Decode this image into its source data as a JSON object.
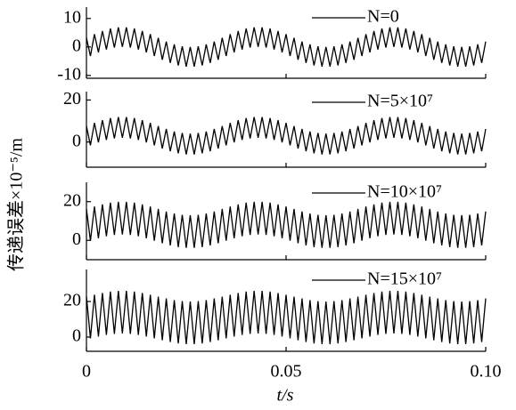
{
  "chart_data": [
    {
      "type": "line",
      "ylabel": "传递误差×10⁻⁵/m",
      "series": [
        {
          "name": "N=0",
          "color": "#000000",
          "values": [
            3.2,
            -3.2,
            4.5,
            -1.9,
            5.6,
            -0.9,
            6.5,
            -0.2,
            6.9,
            0,
            6.9,
            -0.2,
            6.5,
            -0.9,
            5.6,
            -1.9,
            4.5,
            -3.2,
            3.2,
            -4.5,
            1.9,
            -5.6,
            0.9,
            -6.5,
            0.2,
            -6.9,
            0,
            -6.9,
            0.2,
            -6.5,
            0.9,
            -5.6,
            1.9,
            -4.5,
            3.2,
            -3.2,
            4.5,
            -1.9,
            5.6,
            -0.9,
            6.5,
            -0.2,
            6.9,
            0,
            6.9,
            -0.2,
            6.5,
            -0.9,
            5.6,
            -1.9,
            4.5,
            -3.2,
            3.2,
            -4.5,
            1.9,
            -5.6,
            0.9,
            -6.5,
            0.2,
            -6.9,
            0,
            -6.9,
            0.2,
            -6.5,
            0.9,
            -5.6,
            1.9,
            -4.5,
            3.2,
            -3.2,
            4.5,
            -1.9,
            5.6,
            -0.9,
            6.5,
            -0.2,
            6.9,
            0,
            6.9,
            -0.2,
            6.5,
            -0.9,
            5.6,
            -1.9,
            4.5,
            -3.2,
            3.2,
            -4.5,
            1.9,
            -5.6,
            0.9,
            -6.5,
            0.2,
            -6.9,
            0,
            -6.9,
            0.2,
            -6.5,
            0.9,
            -5.6,
            1.9
          ]
        }
      ],
      "x": [
        0,
        0.001,
        0.002,
        0.003,
        0.004,
        0.005,
        0.006,
        0.007,
        0.008,
        0.009,
        0.01,
        0.011,
        0.012,
        0.013,
        0.014,
        0.015,
        0.016,
        0.017,
        0.018,
        0.019,
        0.02,
        0.021,
        0.022,
        0.023,
        0.024,
        0.025,
        0.026,
        0.027,
        0.028,
        0.029,
        0.03,
        0.031,
        0.032,
        0.033,
        0.034,
        0.035,
        0.036,
        0.037,
        0.038,
        0.039,
        0.04,
        0.041,
        0.042,
        0.043,
        0.044,
        0.045,
        0.046,
        0.047,
        0.048,
        0.049,
        0.05,
        0.051,
        0.052,
        0.053,
        0.054,
        0.055,
        0.056,
        0.057,
        0.058,
        0.059,
        0.06,
        0.061,
        0.062,
        0.063,
        0.064,
        0.065,
        0.066,
        0.067,
        0.068,
        0.069,
        0.07,
        0.071,
        0.072,
        0.073,
        0.074,
        0.075,
        0.076,
        0.077,
        0.078,
        0.079,
        0.08,
        0.081,
        0.082,
        0.083,
        0.084,
        0.085,
        0.086,
        0.087,
        0.088,
        0.089,
        0.09,
        0.091,
        0.092,
        0.093,
        0.094,
        0.095,
        0.096,
        0.097,
        0.098,
        0.099,
        0.1
      ],
      "xlim": [
        0,
        0.1
      ],
      "ylim": [
        -11,
        14
      ],
      "yticks": [
        -10,
        0,
        10
      ]
    },
    {
      "type": "line",
      "series": [
        {
          "name": "N=5×10⁷",
          "color": "#000000",
          "values": [
            7.6,
            -1.6,
            9.1,
            -0.2,
            10.4,
            1.0,
            11.4,
            1.7,
            11.9,
            2.0,
            11.9,
            1.7,
            11.4,
            1.0,
            10.4,
            -0.2,
            9.1,
            -1.6,
            7.6,
            -3.1,
            6.2,
            -4.4,
            5.0,
            -5.4,
            4.3,
            -5.9,
            4.0,
            -5.9,
            4.3,
            -5.4,
            5.0,
            -4.4,
            6.2,
            -3.1,
            7.6,
            -1.6,
            9.1,
            -0.2,
            10.4,
            1.0,
            11.4,
            1.7,
            11.9,
            2.0,
            11.9,
            1.7,
            11.4,
            1.0,
            10.4,
            -0.2,
            9.1,
            -1.6,
            7.6,
            -3.1,
            6.2,
            -4.4,
            5.0,
            -5.4,
            4.3,
            -5.9,
            4.0,
            -5.9,
            4.3,
            -5.4,
            5.0,
            -4.4,
            6.2,
            -3.1,
            7.6,
            -1.6,
            9.1,
            -0.2,
            10.4,
            1.0,
            11.4,
            1.7,
            11.9,
            2.0,
            11.9,
            1.7,
            11.4,
            1.0,
            10.4,
            -0.2,
            9.1,
            -1.6,
            7.6,
            -3.1,
            6.2,
            -4.4,
            5.0,
            -5.4,
            4.3,
            -5.9,
            4.0,
            -5.9,
            4.3,
            -5.4,
            5.0,
            -4.4,
            6.2
          ]
        }
      ],
      "x": [
        0,
        0.001,
        0.002,
        0.003,
        0.004,
        0.005,
        0.006,
        0.007,
        0.008,
        0.009,
        0.01,
        0.011,
        0.012,
        0.013,
        0.014,
        0.015,
        0.016,
        0.017,
        0.018,
        0.019,
        0.02,
        0.021,
        0.022,
        0.023,
        0.024,
        0.025,
        0.026,
        0.027,
        0.028,
        0.029,
        0.03,
        0.031,
        0.032,
        0.033,
        0.034,
        0.035,
        0.036,
        0.037,
        0.038,
        0.039,
        0.04,
        0.041,
        0.042,
        0.043,
        0.044,
        0.045,
        0.046,
        0.047,
        0.048,
        0.049,
        0.05,
        0.051,
        0.052,
        0.053,
        0.054,
        0.055,
        0.056,
        0.057,
        0.058,
        0.059,
        0.06,
        0.061,
        0.062,
        0.063,
        0.064,
        0.065,
        0.066,
        0.067,
        0.068,
        0.069,
        0.07,
        0.071,
        0.072,
        0.073,
        0.074,
        0.075,
        0.076,
        0.077,
        0.078,
        0.079,
        0.08,
        0.081,
        0.082,
        0.083,
        0.084,
        0.085,
        0.086,
        0.087,
        0.088,
        0.089,
        0.09,
        0.091,
        0.092,
        0.093,
        0.094,
        0.095,
        0.096,
        0.097,
        0.098,
        0.099,
        0.1
      ],
      "xlim": [
        0,
        0.1
      ],
      "ylim": [
        -12,
        24
      ],
      "yticks": [
        0,
        20
      ]
    },
    {
      "type": "line",
      "series": [
        {
          "name": "N=10×10⁷",
          "color": "#000000",
          "values": [
            16.2,
            -0.2,
            17.5,
            1.1,
            18.6,
            2.1,
            19.5,
            2.8,
            19.9,
            3.0,
            19.9,
            2.8,
            19.5,
            2.1,
            18.6,
            1.1,
            17.5,
            -0.2,
            16.2,
            -1.5,
            14.9,
            -2.6,
            13.9,
            -3.5,
            13.2,
            -3.9,
            13.0,
            -3.9,
            13.2,
            -3.5,
            13.9,
            -2.6,
            14.9,
            -1.5,
            16.2,
            -0.2,
            17.5,
            1.1,
            18.6,
            2.1,
            19.5,
            2.8,
            19.9,
            3.0,
            19.9,
            2.8,
            19.5,
            2.1,
            18.6,
            1.1,
            17.5,
            -0.2,
            16.2,
            -1.5,
            14.9,
            -2.6,
            13.9,
            -3.5,
            13.2,
            -3.9,
            13.0,
            -3.9,
            13.2,
            -3.5,
            13.9,
            -2.6,
            14.9,
            -1.5,
            16.2,
            -0.2,
            17.5,
            1.1,
            18.6,
            2.1,
            19.5,
            2.8,
            19.9,
            3.0,
            19.9,
            2.8,
            19.5,
            2.1,
            18.6,
            1.1,
            17.5,
            -0.2,
            16.2,
            -1.5,
            14.9,
            -2.6,
            13.9,
            -3.5,
            13.2,
            -3.9,
            13.0,
            -3.9,
            13.2,
            -3.5,
            13.9,
            -2.6,
            14.9
          ]
        }
      ],
      "x": [
        0,
        0.001,
        0.002,
        0.003,
        0.004,
        0.005,
        0.006,
        0.007,
        0.008,
        0.009,
        0.01,
        0.011,
        0.012,
        0.013,
        0.014,
        0.015,
        0.016,
        0.017,
        0.018,
        0.019,
        0.02,
        0.021,
        0.022,
        0.023,
        0.024,
        0.025,
        0.026,
        0.027,
        0.028,
        0.029,
        0.03,
        0.031,
        0.032,
        0.033,
        0.034,
        0.035,
        0.036,
        0.037,
        0.038,
        0.039,
        0.04,
        0.041,
        0.042,
        0.043,
        0.044,
        0.045,
        0.046,
        0.047,
        0.048,
        0.049,
        0.05,
        0.051,
        0.052,
        0.053,
        0.054,
        0.055,
        0.056,
        0.057,
        0.058,
        0.059,
        0.06,
        0.061,
        0.062,
        0.063,
        0.064,
        0.065,
        0.066,
        0.067,
        0.068,
        0.069,
        0.07,
        0.071,
        0.072,
        0.073,
        0.074,
        0.075,
        0.076,
        0.077,
        0.078,
        0.079,
        0.08,
        0.081,
        0.082,
        0.083,
        0.084,
        0.085,
        0.086,
        0.087,
        0.088,
        0.089,
        0.09,
        0.091,
        0.092,
        0.093,
        0.094,
        0.095,
        0.096,
        0.097,
        0.098,
        0.099,
        0.1
      ],
      "xlim": [
        0,
        0.1
      ],
      "ylim": [
        -10,
        30
      ],
      "yticks": [
        0,
        20
      ]
    },
    {
      "type": "line",
      "xlabel": "t/s",
      "series": [
        {
          "name": "N=15×10⁷",
          "color": "#000000",
          "values": [
            22.7,
            -0.7,
            23.8,
            0.3,
            24.8,
            1.2,
            25.6,
            1.8,
            26.0,
            2.0,
            26.0,
            1.8,
            25.6,
            1.2,
            24.8,
            0.3,
            23.8,
            -0.7,
            22.7,
            -1.8,
            21.7,
            -2.8,
            20.8,
            -3.6,
            20.2,
            -4.0,
            20.0,
            -4.0,
            20.2,
            -3.6,
            20.8,
            -2.8,
            21.7,
            -1.8,
            22.7,
            -0.7,
            23.8,
            0.3,
            24.8,
            1.2,
            25.6,
            1.8,
            26.0,
            2.0,
            26.0,
            1.8,
            25.6,
            1.2,
            24.8,
            0.3,
            23.8,
            -0.7,
            22.7,
            -1.8,
            21.7,
            -2.8,
            20.8,
            -3.6,
            20.2,
            -4.0,
            20.0,
            -4.0,
            20.2,
            -3.6,
            20.8,
            -2.8,
            21.7,
            -1.8,
            22.7,
            -0.7,
            23.8,
            0.3,
            24.8,
            1.2,
            25.6,
            1.8,
            26.0,
            2.0,
            26.0,
            1.8,
            25.6,
            1.2,
            24.8,
            0.3,
            23.8,
            -0.7,
            22.7,
            -1.8,
            21.7,
            -2.8,
            20.8,
            -3.6,
            20.2,
            -4.0,
            20.0,
            -4.0,
            20.2,
            -3.6,
            20.8,
            -2.8,
            21.7
          ]
        }
      ],
      "x": [
        0,
        0.001,
        0.002,
        0.003,
        0.004,
        0.005,
        0.006,
        0.007,
        0.008,
        0.009,
        0.01,
        0.011,
        0.012,
        0.013,
        0.014,
        0.015,
        0.016,
        0.017,
        0.018,
        0.019,
        0.02,
        0.021,
        0.022,
        0.023,
        0.024,
        0.025,
        0.026,
        0.027,
        0.028,
        0.029,
        0.03,
        0.031,
        0.032,
        0.033,
        0.034,
        0.035,
        0.036,
        0.037,
        0.038,
        0.039,
        0.04,
        0.041,
        0.042,
        0.043,
        0.044,
        0.045,
        0.046,
        0.047,
        0.048,
        0.049,
        0.05,
        0.051,
        0.052,
        0.053,
        0.054,
        0.055,
        0.056,
        0.057,
        0.058,
        0.059,
        0.06,
        0.061,
        0.062,
        0.063,
        0.064,
        0.065,
        0.066,
        0.067,
        0.068,
        0.069,
        0.07,
        0.071,
        0.072,
        0.073,
        0.074,
        0.075,
        0.076,
        0.077,
        0.078,
        0.079,
        0.08,
        0.081,
        0.082,
        0.083,
        0.084,
        0.085,
        0.086,
        0.087,
        0.088,
        0.089,
        0.09,
        0.091,
        0.092,
        0.093,
        0.094,
        0.095,
        0.096,
        0.097,
        0.098,
        0.099,
        0.1
      ],
      "xlim": [
        0,
        0.1
      ],
      "ylim": [
        -8,
        38
      ],
      "yticks": [
        0,
        20
      ],
      "xticks": [
        0,
        0.05,
        {
          "value": 0.1,
          "label": "0.10"
        }
      ]
    }
  ]
}
